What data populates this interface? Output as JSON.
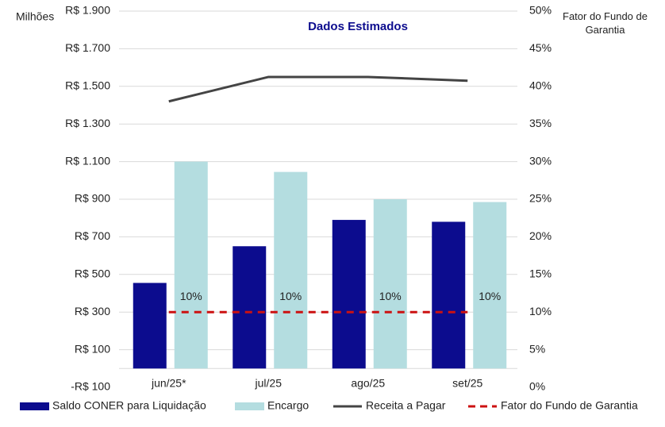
{
  "chart_data": {
    "type": "bar",
    "title": "Dados Estimados",
    "y_label": "Milhões",
    "y2_label": "Fator do Fundo de Garantia",
    "categories": [
      "jun/25*",
      "jul/25",
      "ago/25",
      "set/25"
    ],
    "series": [
      {
        "name": "Saldo CONER para Liquidação",
        "type": "bar",
        "color": "#0c0c8e",
        "values": [
          455,
          650,
          790,
          780
        ]
      },
      {
        "name": "Encargo",
        "type": "bar",
        "color": "#b4dde0",
        "values": [
          1100,
          1045,
          900,
          885
        ]
      },
      {
        "name": "Receita a Pagar",
        "type": "line",
        "color": "#444444",
        "values": [
          1420,
          1550,
          1550,
          1530
        ]
      },
      {
        "name": "Fator do Fundo de Garantia",
        "type": "dashed-line",
        "color": "#cc1111",
        "axis": "y2",
        "values": [
          10,
          10,
          10,
          10
        ],
        "value_labels": [
          "10%",
          "10%",
          "10%",
          "10%"
        ]
      }
    ],
    "ylim": [
      -100,
      1900
    ],
    "yticks": [
      {
        "value": -100,
        "label": "-R$ 100"
      },
      {
        "value": 100,
        "label": "R$ 100"
      },
      {
        "value": 300,
        "label": "R$ 300"
      },
      {
        "value": 500,
        "label": "R$ 500"
      },
      {
        "value": 700,
        "label": "R$ 700"
      },
      {
        "value": 900,
        "label": "R$ 900"
      },
      {
        "value": 1100,
        "label": "R$ 1.100"
      },
      {
        "value": 1300,
        "label": "R$ 1.300"
      },
      {
        "value": 1500,
        "label": "R$ 1.500"
      },
      {
        "value": 1700,
        "label": "R$ 1.700"
      },
      {
        "value": 1900,
        "label": "R$ 1.900"
      }
    ],
    "y2lim": [
      0,
      50
    ],
    "y2ticks": [
      {
        "value": 0,
        "label": "0%"
      },
      {
        "value": 5,
        "label": "5%"
      },
      {
        "value": 10,
        "label": "10%"
      },
      {
        "value": 15,
        "label": "15%"
      },
      {
        "value": 20,
        "label": "20%"
      },
      {
        "value": 25,
        "label": "25%"
      },
      {
        "value": 30,
        "label": "30%"
      },
      {
        "value": 35,
        "label": "35%"
      },
      {
        "value": 40,
        "label": "40%"
      },
      {
        "value": 45,
        "label": "45%"
      },
      {
        "value": 50,
        "label": "50%"
      }
    ],
    "grid": true,
    "legend": "bottom"
  }
}
